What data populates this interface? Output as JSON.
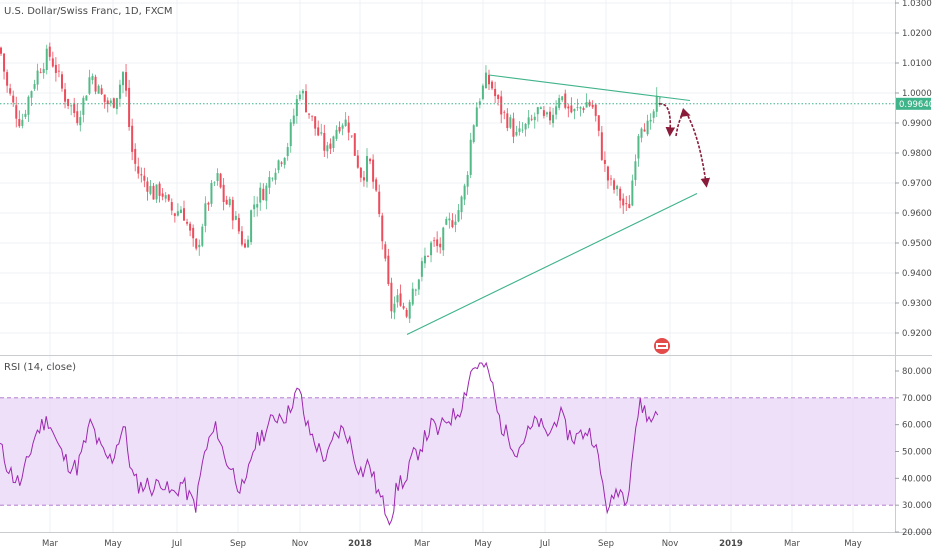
{
  "header": {
    "symbol_title": "U.S. Dollar/Swiss Franc, 1D, FXCM"
  },
  "colors": {
    "up": "#53b987",
    "down": "#eb4d5c",
    "rsi_line": "#9c27b0",
    "rsi_band": "#e9d6f7",
    "trend_line": "#3fb38a",
    "arrow": "#8a1c3a",
    "last_price_bg": "#3fb38a",
    "grid": "#eef1f5",
    "axis_text": "#4a4a4a"
  },
  "chart_data": [
    {
      "type": "candlestick",
      "title": "U.S. Dollar/Swiss Franc, 1D, FXCM",
      "x_tick_labels": [
        "Mar",
        "May",
        "Jul",
        "Sep",
        "Nov",
        "2018",
        "Mar",
        "May",
        "Jul",
        "Sep",
        "Nov",
        "2019",
        "Mar",
        "May"
      ],
      "y_tick_labels": [
        "1.03000",
        "1.02000",
        "1.01000",
        "1.00000",
        "0.99000",
        "0.98000",
        "0.97000",
        "0.96000",
        "0.95000",
        "0.94000",
        "0.93000",
        "0.92000"
      ],
      "ylim": [
        0.915,
        1.031
      ],
      "last_price": 0.9964,
      "last_price_label": "0.99640",
      "close_path": [
        [
          0,
          1.015
        ],
        [
          7,
          1.002
        ],
        [
          14,
          0.995
        ],
        [
          21,
          0.99
        ],
        [
          28,
          0.998
        ],
        [
          35,
          1.005
        ],
        [
          42,
          1.01
        ],
        [
          49,
          1.013
        ],
        [
          56,
          1.008
        ],
        [
          63,
          1.0
        ],
        [
          70,
          0.996
        ],
        [
          77,
          0.992
        ],
        [
          84,
          0.998
        ],
        [
          91,
          1.007
        ],
        [
          98,
          1.001
        ],
        [
          105,
          0.997
        ],
        [
          112,
          0.996
        ],
        [
          119,
          1.002
        ],
        [
          124,
          1.008
        ],
        [
          128,
          0.992
        ],
        [
          133,
          0.978
        ],
        [
          140,
          0.972
        ],
        [
          147,
          0.97
        ],
        [
          154,
          0.966
        ],
        [
          161,
          0.968
        ],
        [
          168,
          0.962
        ],
        [
          175,
          0.96
        ],
        [
          182,
          0.962
        ],
        [
          189,
          0.954
        ],
        [
          196,
          0.946
        ],
        [
          203,
          0.958
        ],
        [
          210,
          0.966
        ],
        [
          217,
          0.972
        ],
        [
          224,
          0.964
        ],
        [
          231,
          0.962
        ],
        [
          238,
          0.955
        ],
        [
          245,
          0.948
        ],
        [
          252,
          0.962
        ],
        [
          259,
          0.966
        ],
        [
          266,
          0.968
        ],
        [
          273,
          0.975
        ],
        [
          280,
          0.978
        ],
        [
          287,
          0.982
        ],
        [
          294,
          0.993
        ],
        [
          300,
          1.002
        ],
        [
          306,
          0.996
        ],
        [
          313,
          0.99
        ],
        [
          320,
          0.985
        ],
        [
          327,
          0.98
        ],
        [
          334,
          0.987
        ],
        [
          341,
          0.991
        ],
        [
          348,
          0.99
        ],
        [
          355,
          0.98
        ],
        [
          362,
          0.972
        ],
        [
          369,
          0.978
        ],
        [
          376,
          0.965
        ],
        [
          381,
          0.955
        ],
        [
          386,
          0.94
        ],
        [
          391,
          0.928
        ],
        [
          396,
          0.93
        ],
        [
          401,
          0.932
        ],
        [
          406,
          0.925
        ],
        [
          411,
          0.935
        ],
        [
          418,
          0.938
        ],
        [
          425,
          0.945
        ],
        [
          432,
          0.95
        ],
        [
          439,
          0.948
        ],
        [
          446,
          0.955
        ],
        [
          453,
          0.958
        ],
        [
          460,
          0.962
        ],
        [
          466,
          0.97
        ],
        [
          471,
          0.985
        ],
        [
          476,
          0.995
        ],
        [
          481,
          1.0
        ],
        [
          486,
          1.004
        ],
        [
          491,
          1.003
        ],
        [
          497,
          0.997
        ],
        [
          503,
          0.993
        ],
        [
          510,
          0.99
        ],
        [
          517,
          0.985
        ],
        [
          524,
          0.988
        ],
        [
          531,
          0.99
        ],
        [
          538,
          0.994
        ],
        [
          545,
          0.99
        ],
        [
          552,
          0.993
        ],
        [
          559,
          1.0
        ],
        [
          566,
          0.996
        ],
        [
          573,
          0.993
        ],
        [
          580,
          0.995
        ],
        [
          587,
          0.997
        ],
        [
          594,
          0.995
        ],
        [
          599,
          0.985
        ],
        [
          604,
          0.976
        ],
        [
          609,
          0.97
        ],
        [
          614,
          0.968
        ],
        [
          619,
          0.966
        ],
        [
          624,
          0.962
        ],
        [
          628,
          0.96
        ],
        [
          632,
          0.97
        ],
        [
          636,
          0.982
        ],
        [
          640,
          0.991
        ],
        [
          645,
          0.99
        ],
        [
          650,
          0.987
        ],
        [
          655,
          0.996
        ],
        [
          660,
          0.9964
        ]
      ],
      "trend_lines": [
        {
          "from": [
            407,
            0.9195
          ],
          "to": [
            697,
            0.9665
          ]
        },
        {
          "from": [
            489,
            1.006
          ],
          "to": [
            690,
            0.9975
          ]
        }
      ]
    },
    {
      "type": "line",
      "title": "RSI (14, close)",
      "y_tick_labels": [
        "80.0000",
        "70.0000",
        "60.0000",
        "50.0000",
        "40.0000",
        "30.0000",
        "20.0000"
      ],
      "ylim": [
        20,
        83
      ],
      "band": [
        30,
        70
      ],
      "series": [
        {
          "name": "RSI",
          "points": [
            [
              0,
              52
            ],
            [
              7,
              45
            ],
            [
              14,
              40
            ],
            [
              21,
              38
            ],
            [
              28,
              47
            ],
            [
              35,
              56
            ],
            [
              42,
              60
            ],
            [
              49,
              62
            ],
            [
              56,
              54
            ],
            [
              63,
              48
            ],
            [
              70,
              45
            ],
            [
              77,
              44
            ],
            [
              84,
              52
            ],
            [
              91,
              61
            ],
            [
              98,
              53
            ],
            [
              105,
              48
            ],
            [
              112,
              47
            ],
            [
              119,
              55
            ],
            [
              124,
              60
            ],
            [
              128,
              50
            ],
            [
              133,
              40
            ],
            [
              140,
              37
            ],
            [
              147,
              38
            ],
            [
              154,
              36
            ],
            [
              161,
              40
            ],
            [
              168,
              35
            ],
            [
              175,
              34
            ],
            [
              182,
              39
            ],
            [
              189,
              33
            ],
            [
              196,
              30
            ],
            [
              203,
              47
            ],
            [
              210,
              55
            ],
            [
              217,
              59
            ],
            [
              224,
              48
            ],
            [
              231,
              44
            ],
            [
              238,
              38
            ],
            [
              245,
              35
            ],
            [
              252,
              50
            ],
            [
              259,
              55
            ],
            [
              266,
              58
            ],
            [
              273,
              62
            ],
            [
              280,
              64
            ],
            [
              287,
              63
            ],
            [
              294,
              71
            ],
            [
              300,
              72
            ],
            [
              306,
              60
            ],
            [
              313,
              55
            ],
            [
              320,
              50
            ],
            [
              327,
              47
            ],
            [
              334,
              55
            ],
            [
              341,
              58
            ],
            [
              348,
              56
            ],
            [
              355,
              47
            ],
            [
              362,
              42
            ],
            [
              369,
              46
            ],
            [
              376,
              37
            ],
            [
              381,
              32
            ],
            [
              386,
              28
            ],
            [
              391,
              25
            ],
            [
              396,
              35
            ],
            [
              401,
              40
            ],
            [
              406,
              37
            ],
            [
              411,
              47
            ],
            [
              418,
              50
            ],
            [
              425,
              55
            ],
            [
              432,
              60
            ],
            [
              439,
              57
            ],
            [
              446,
              62
            ],
            [
              453,
              63
            ],
            [
              460,
              66
            ],
            [
              466,
              73
            ],
            [
              471,
              80
            ],
            [
              476,
              82
            ],
            [
              481,
              83
            ],
            [
              486,
              81
            ],
            [
              491,
              77
            ],
            [
              497,
              65
            ],
            [
              503,
              58
            ],
            [
              510,
              55
            ],
            [
              517,
              50
            ],
            [
              524,
              55
            ],
            [
              531,
              58
            ],
            [
              538,
              62
            ],
            [
              545,
              56
            ],
            [
              552,
              58
            ],
            [
              559,
              65
            ],
            [
              566,
              58
            ],
            [
              573,
              55
            ],
            [
              580,
              56
            ],
            [
              587,
              58
            ],
            [
              594,
              55
            ],
            [
              599,
              45
            ],
            [
              604,
              35
            ],
            [
              609,
              27
            ],
            [
              614,
              34
            ],
            [
              619,
              37
            ],
            [
              624,
              33
            ],
            [
              628,
              35
            ],
            [
              632,
              48
            ],
            [
              636,
              60
            ],
            [
              640,
              67
            ],
            [
              645,
              66
            ],
            [
              650,
              60
            ],
            [
              655,
              65
            ],
            [
              660,
              65
            ]
          ]
        }
      ]
    }
  ]
}
